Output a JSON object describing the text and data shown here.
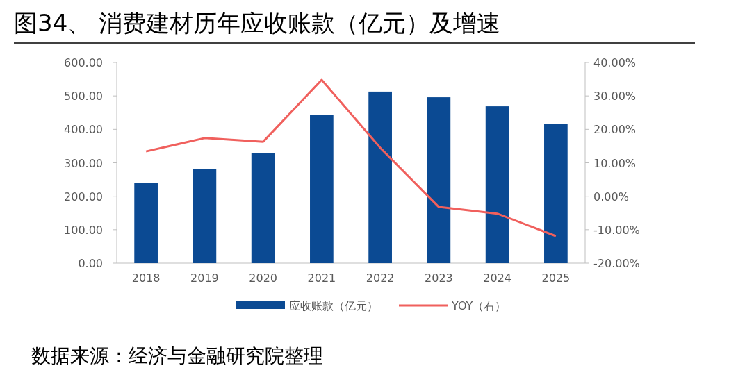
{
  "chart_data": {
    "type": "bar",
    "title": "图34、 消费建材历年应收账款（亿元）及增速",
    "categories": [
      "2018",
      "2019",
      "2020",
      "2021",
      "2022",
      "2023",
      "2024",
      "2025"
    ],
    "series": [
      {
        "name": "应收账款（亿元）",
        "color": "#0b4a93",
        "values": [
          239,
          282,
          330,
          444,
          513,
          496,
          469,
          417
        ]
      },
      {
        "name": "YOY（右）",
        "type": "line",
        "axis": "y2",
        "color": "#f0605d",
        "values": [
          13.4,
          17.4,
          16.3,
          34.8,
          14.5,
          -3.2,
          -5.2,
          -11.9
        ]
      }
    ],
    "ylim": [
      0,
      600
    ],
    "yticks": [
      {
        "value": 0,
        "label": "0.00"
      },
      {
        "value": 100,
        "label": "100.00"
      },
      {
        "value": 200,
        "label": "200.00"
      },
      {
        "value": 300,
        "label": "300.00"
      },
      {
        "value": 400,
        "label": "400.00"
      },
      {
        "value": 500,
        "label": "500.00"
      },
      {
        "value": 600,
        "label": "600.00"
      }
    ],
    "y2lim": [
      -20,
      40
    ],
    "y2ticks": [
      {
        "value": -20,
        "label": "-20.00%"
      },
      {
        "value": -10,
        "label": "-10.00%"
      },
      {
        "value": 0,
        "label": "0.00%"
      },
      {
        "value": 10,
        "label": "10.00%"
      },
      {
        "value": 20,
        "label": "20.00%"
      },
      {
        "value": 30,
        "label": "30.00%"
      },
      {
        "value": 40,
        "label": "40.00%"
      }
    ],
    "legend": "bottom",
    "annotations": [
      "数据来源：经济与金融研究院整理"
    ]
  }
}
